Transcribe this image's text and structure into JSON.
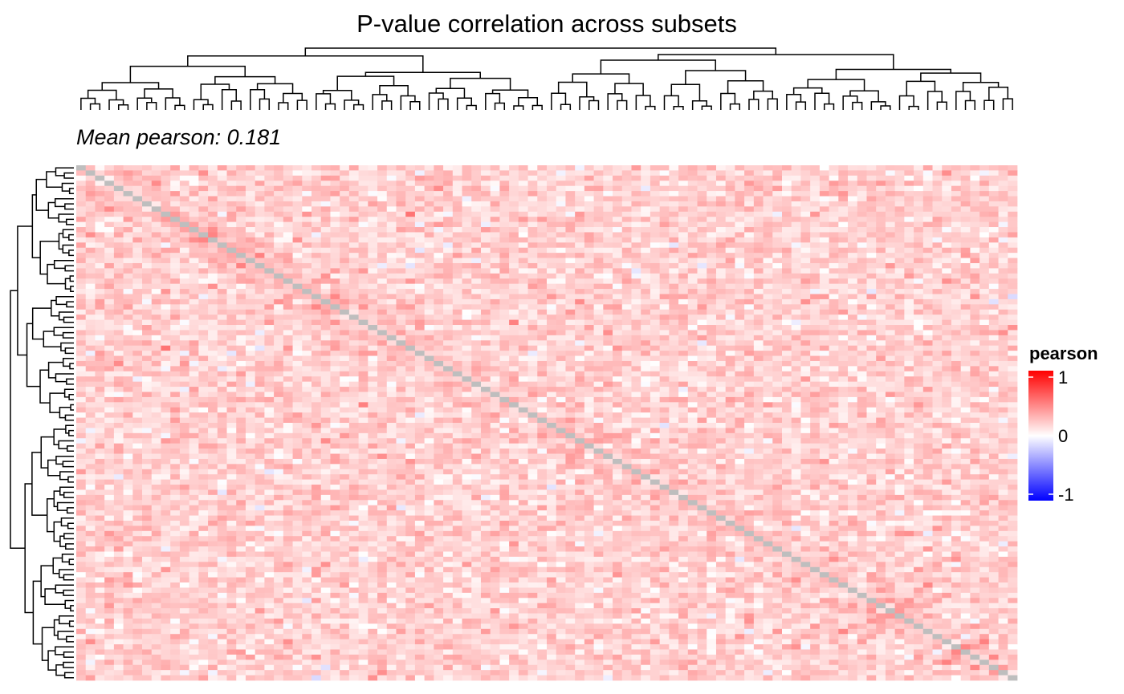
{
  "chart_data": {
    "type": "heatmap",
    "title": "P-value correlation across subsets",
    "subtitle": "Mean pearson: 0.181",
    "metric": "pearson",
    "mean_value": 0.181,
    "n_subsets": 100,
    "diagonal_color": "#BEBEBE",
    "value_range": [
      -1,
      1
    ],
    "color_scale": {
      "low": "#0000FF",
      "mid": "#FFFFFF",
      "high": "#FF0000",
      "midpoint": 0
    },
    "legend": {
      "title": "pearson",
      "ticks": [
        1,
        0,
        -1
      ],
      "tick_labels": [
        "1",
        "0",
        "-1"
      ],
      "placement": "right"
    },
    "row_dendrogram": "left",
    "column_dendrogram": "top"
  }
}
